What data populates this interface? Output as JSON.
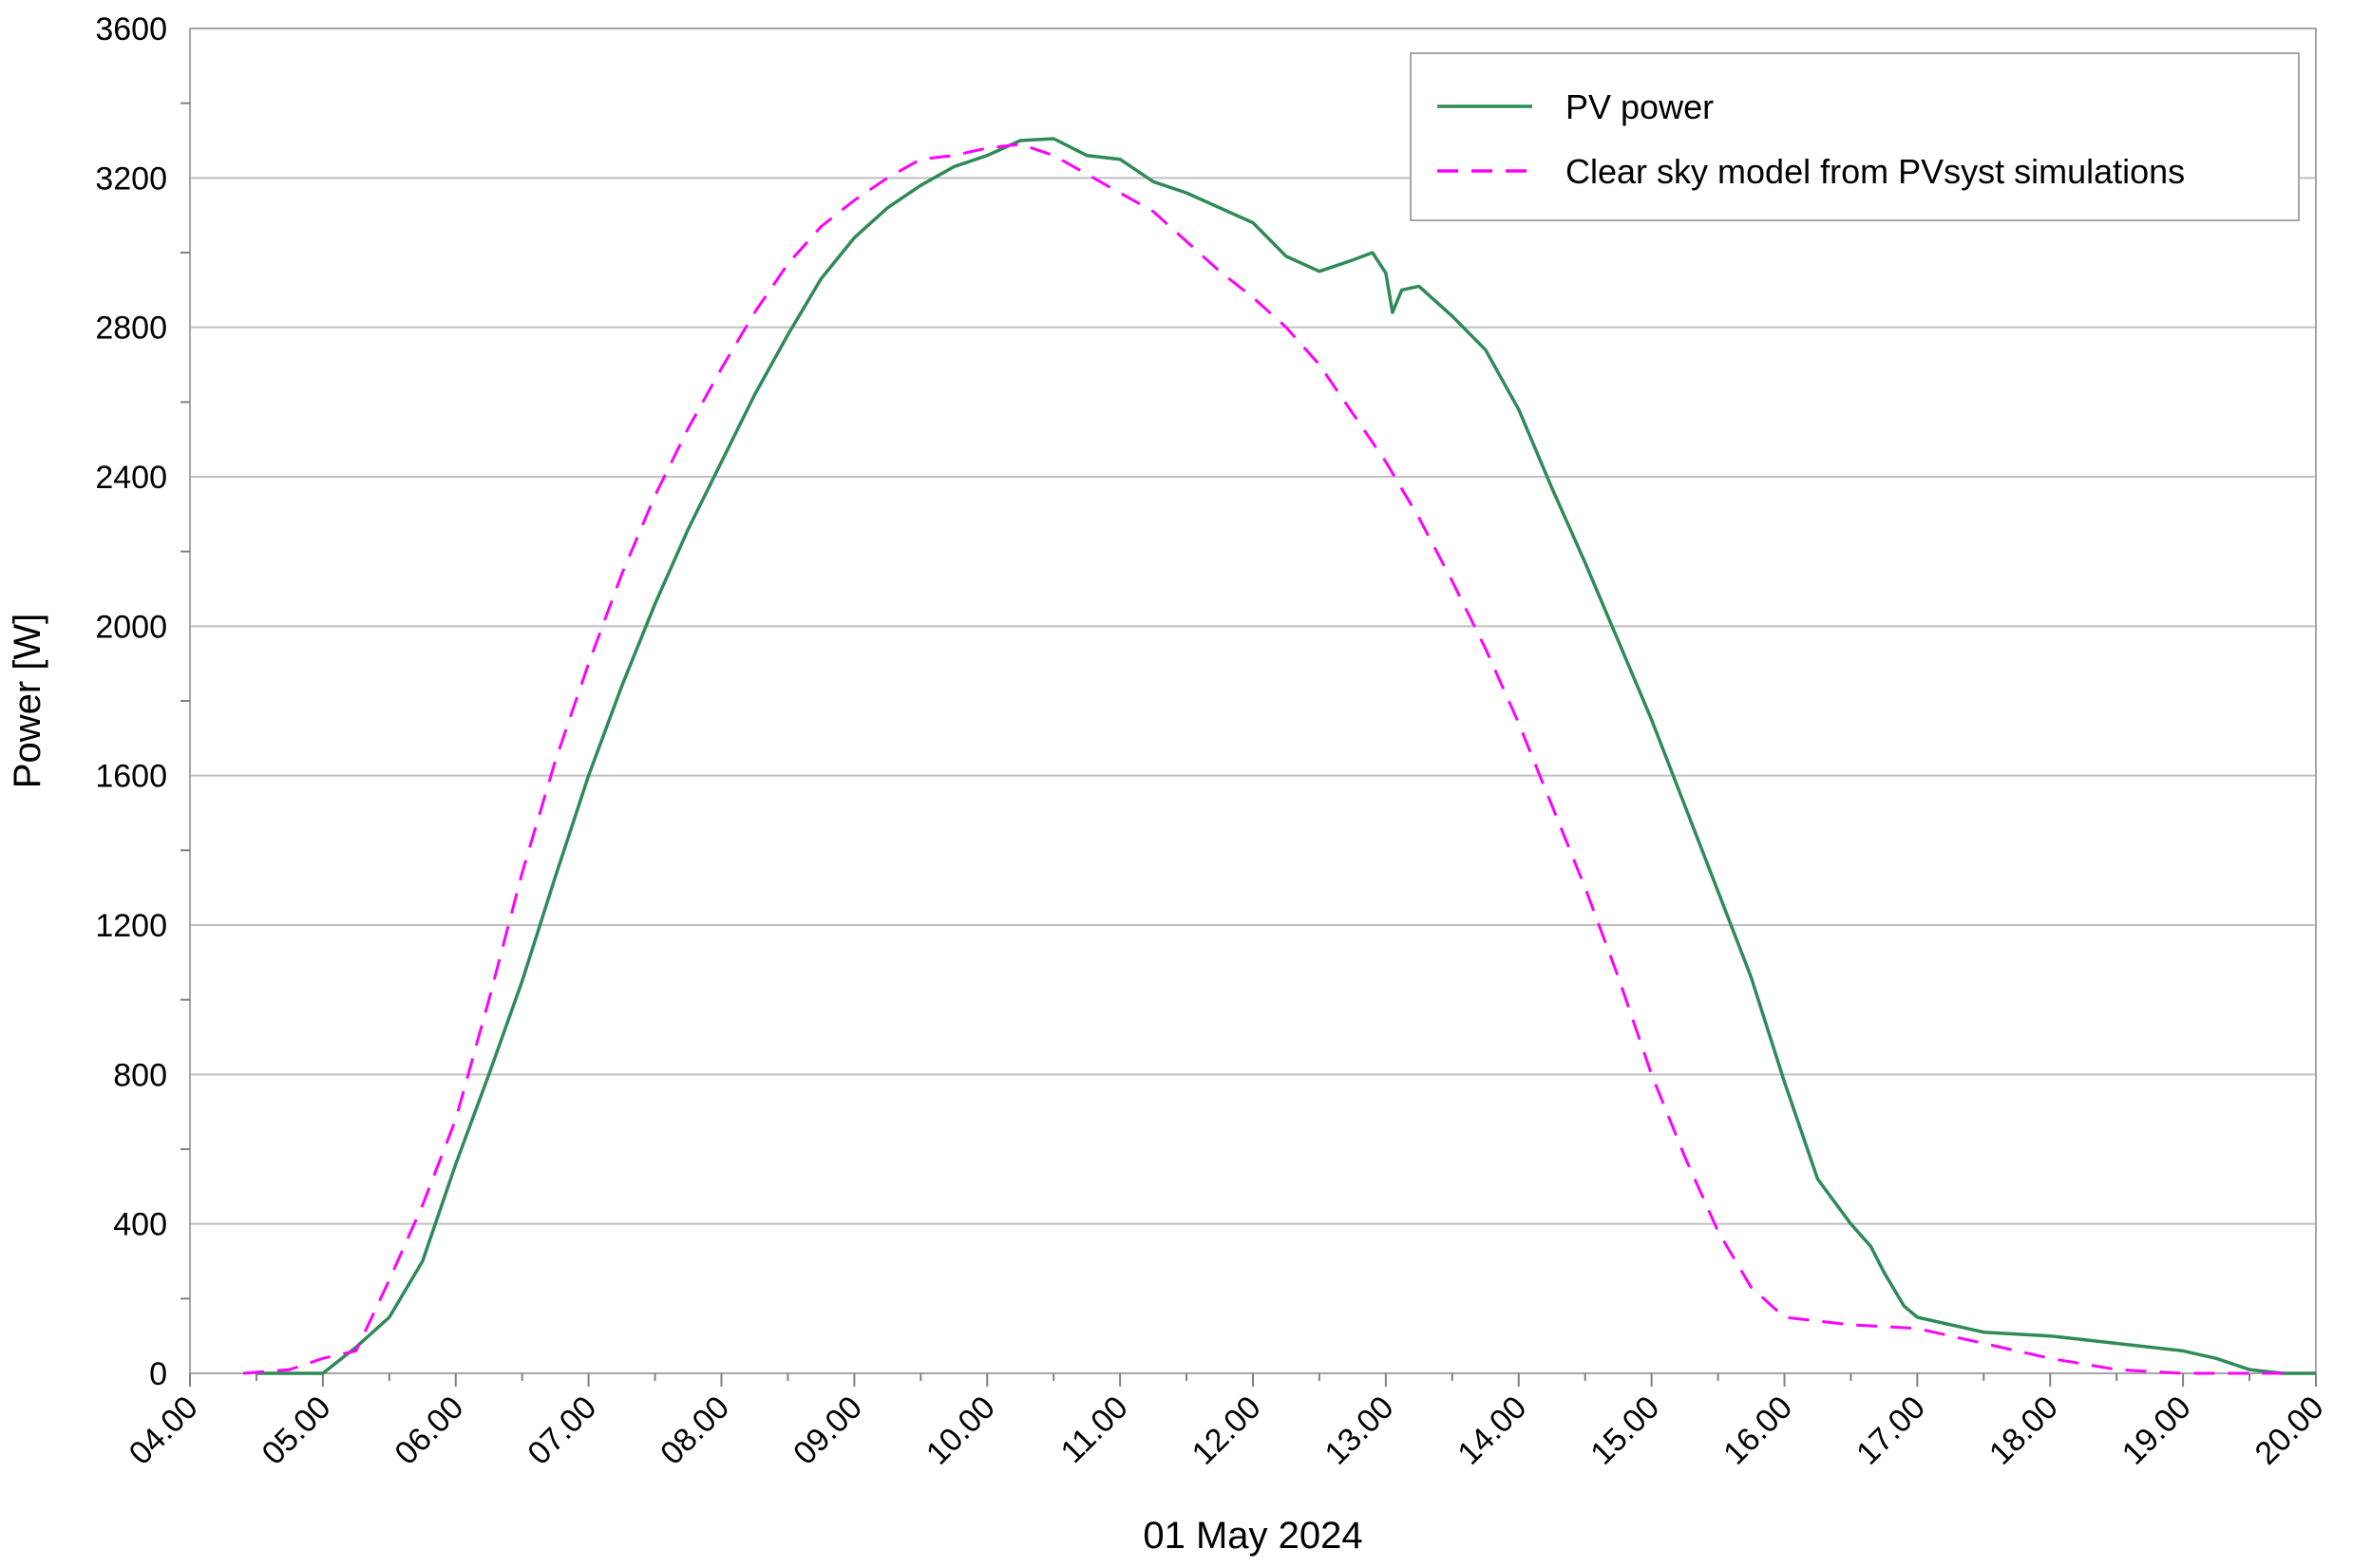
{
  "chart_data": {
    "type": "line",
    "title": "",
    "xlabel": "01 May 2024",
    "ylabel": "Power [W]",
    "xlim": [
      "04.00",
      "20.00"
    ],
    "ylim": [
      0,
      3600
    ],
    "x_ticks": [
      "04.00",
      "05.00",
      "06.00",
      "07.00",
      "08.00",
      "09.00",
      "10.00",
      "11.00",
      "12.00",
      "13.00",
      "14.00",
      "15.00",
      "16.00",
      "17.00",
      "18.00",
      "19.00",
      "20.00"
    ],
    "y_ticks": [
      0,
      400,
      800,
      1200,
      1600,
      2000,
      2400,
      2800,
      3200,
      3600
    ],
    "grid": true,
    "legend_position": "top-right",
    "series": [
      {
        "name": "PV power",
        "color": "#2e8b57",
        "style": "solid",
        "x": [
          "04.50",
          "04.75",
          "04.90",
          "05.00",
          "05.25",
          "05.50",
          "05.75",
          "06.00",
          "06.25",
          "06.50",
          "06.75",
          "07.00",
          "07.25",
          "07.50",
          "07.75",
          "08.00",
          "08.25",
          "08.50",
          "08.75",
          "09.00",
          "09.25",
          "09.50",
          "09.75",
          "10.00",
          "10.25",
          "10.50",
          "10.75",
          "11.00",
          "11.25",
          "11.50",
          "11.75",
          "12.00",
          "12.25",
          "12.50",
          "12.75",
          "12.90",
          "13.00",
          "13.05",
          "13.12",
          "13.25",
          "13.50",
          "13.75",
          "14.00",
          "14.25",
          "14.50",
          "14.75",
          "15.00",
          "15.25",
          "15.50",
          "15.75",
          "16.00",
          "16.25",
          "16.50",
          "16.65",
          "16.75",
          "16.90",
          "17.00",
          "17.50",
          "18.00",
          "18.50",
          "19.00",
          "19.25",
          "19.50",
          "19.75",
          "20.00"
        ],
        "values": [
          0,
          0,
          0,
          0,
          70,
          150,
          300,
          560,
          800,
          1050,
          1330,
          1600,
          1840,
          2060,
          2260,
          2440,
          2620,
          2780,
          2930,
          3040,
          3120,
          3180,
          3230,
          3260,
          3300,
          3305,
          3260,
          3250,
          3190,
          3160,
          3120,
          3080,
          2990,
          2950,
          2980,
          3000,
          2945,
          2840,
          2900,
          2910,
          2830,
          2740,
          2580,
          2370,
          2170,
          1960,
          1750,
          1520,
          1290,
          1060,
          780,
          520,
          400,
          340,
          270,
          180,
          150,
          110,
          100,
          80,
          60,
          40,
          10,
          0,
          0
        ]
      },
      {
        "name": "Clear sky model from PVsyst simulations",
        "color": "#ff00ff",
        "style": "dashed",
        "x": [
          "04.40",
          "04.75",
          "05.00",
          "05.25",
          "05.50",
          "05.75",
          "06.00",
          "06.25",
          "06.50",
          "06.75",
          "07.00",
          "07.25",
          "07.50",
          "07.75",
          "08.00",
          "08.25",
          "08.50",
          "08.75",
          "09.00",
          "09.25",
          "09.50",
          "09.75",
          "10.00",
          "10.25",
          "10.50",
          "10.75",
          "11.00",
          "11.25",
          "11.50",
          "11.75",
          "12.00",
          "12.25",
          "12.50",
          "12.75",
          "13.00",
          "13.25",
          "13.50",
          "13.75",
          "14.00",
          "14.25",
          "14.50",
          "14.75",
          "15.00",
          "15.25",
          "15.50",
          "15.75",
          "16.00",
          "16.25",
          "16.50",
          "16.75",
          "17.00",
          "17.25",
          "17.50",
          "17.75",
          "18.00",
          "18.50",
          "19.00",
          "19.25",
          "19.50",
          "19.75"
        ],
        "values": [
          0,
          10,
          40,
          60,
          250,
          450,
          680,
          1000,
          1340,
          1640,
          1900,
          2140,
          2350,
          2530,
          2690,
          2840,
          2970,
          3070,
          3140,
          3200,
          3250,
          3260,
          3280,
          3290,
          3260,
          3210,
          3160,
          3110,
          3030,
          2950,
          2880,
          2800,
          2700,
          2570,
          2440,
          2290,
          2120,
          1940,
          1740,
          1520,
          1300,
          1060,
          800,
          580,
          380,
          230,
          150,
          140,
          130,
          125,
          120,
          100,
          80,
          60,
          40,
          10,
          0,
          0,
          0,
          0
        ]
      }
    ]
  }
}
